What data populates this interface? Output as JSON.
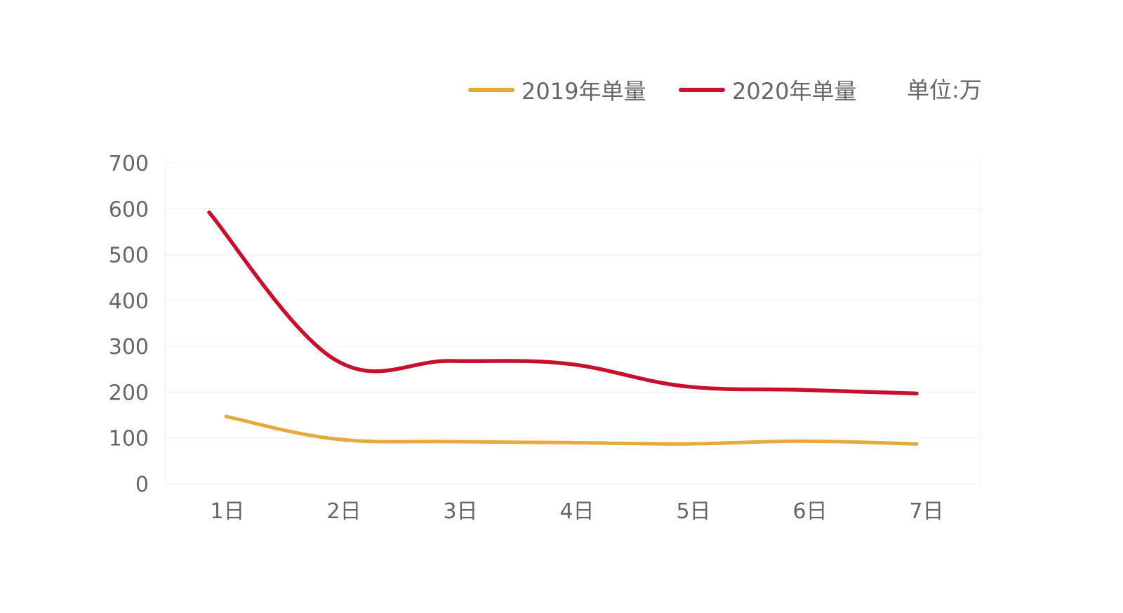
{
  "legend": {
    "items": [
      {
        "label": "2019年单量",
        "color": "#E8A93C"
      },
      {
        "label": "2020年单量",
        "color": "#C8102E"
      }
    ],
    "unit_label": "单位:万"
  },
  "chart_data": {
    "type": "line",
    "title": "",
    "xlabel": "",
    "ylabel": "",
    "categories": [
      "1日",
      "2日",
      "3日",
      "4日",
      "5日",
      "6日",
      "7日"
    ],
    "ylim": [
      0,
      700
    ],
    "yticks": [
      0,
      100,
      200,
      300,
      400,
      500,
      600,
      700
    ],
    "grid": true,
    "legend_position": "top-right",
    "series": [
      {
        "name": "2019年单量",
        "color": "#E8A93C",
        "values": [
          147,
          98,
          92,
          90,
          87,
          93,
          87
        ]
      },
      {
        "name": "2020年单量",
        "color": "#C8102E",
        "values": [
          592,
          272,
          268,
          262,
          213,
          205,
          197
        ]
      }
    ]
  }
}
